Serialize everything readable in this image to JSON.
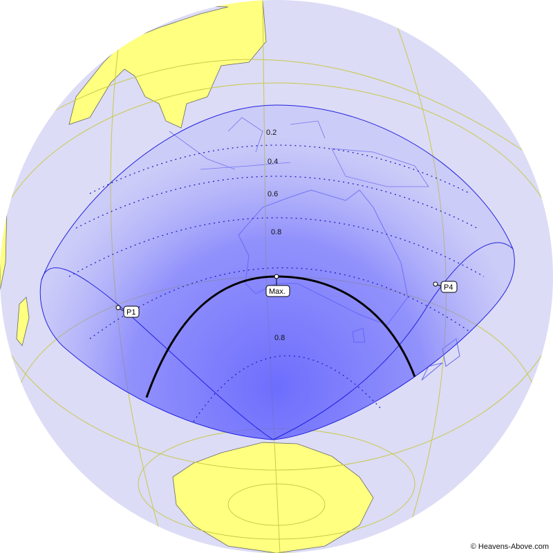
{
  "colors": {
    "ocean": "#dcdcf6",
    "land": "#ffff80",
    "coast": "#6a6a6a",
    "graticule": "#c8c84a",
    "penumbra": "#4a4aff",
    "boundary": "#2020e0",
    "central_line": "#000000"
  },
  "magnitude_labels": [
    "0.2",
    "0.4",
    "0.6",
    "0.8",
    "0.8"
  ],
  "contacts": {
    "p1": "P1",
    "p4": "P4",
    "max": "Max."
  },
  "copyright": "© Heavens-Above.com"
}
